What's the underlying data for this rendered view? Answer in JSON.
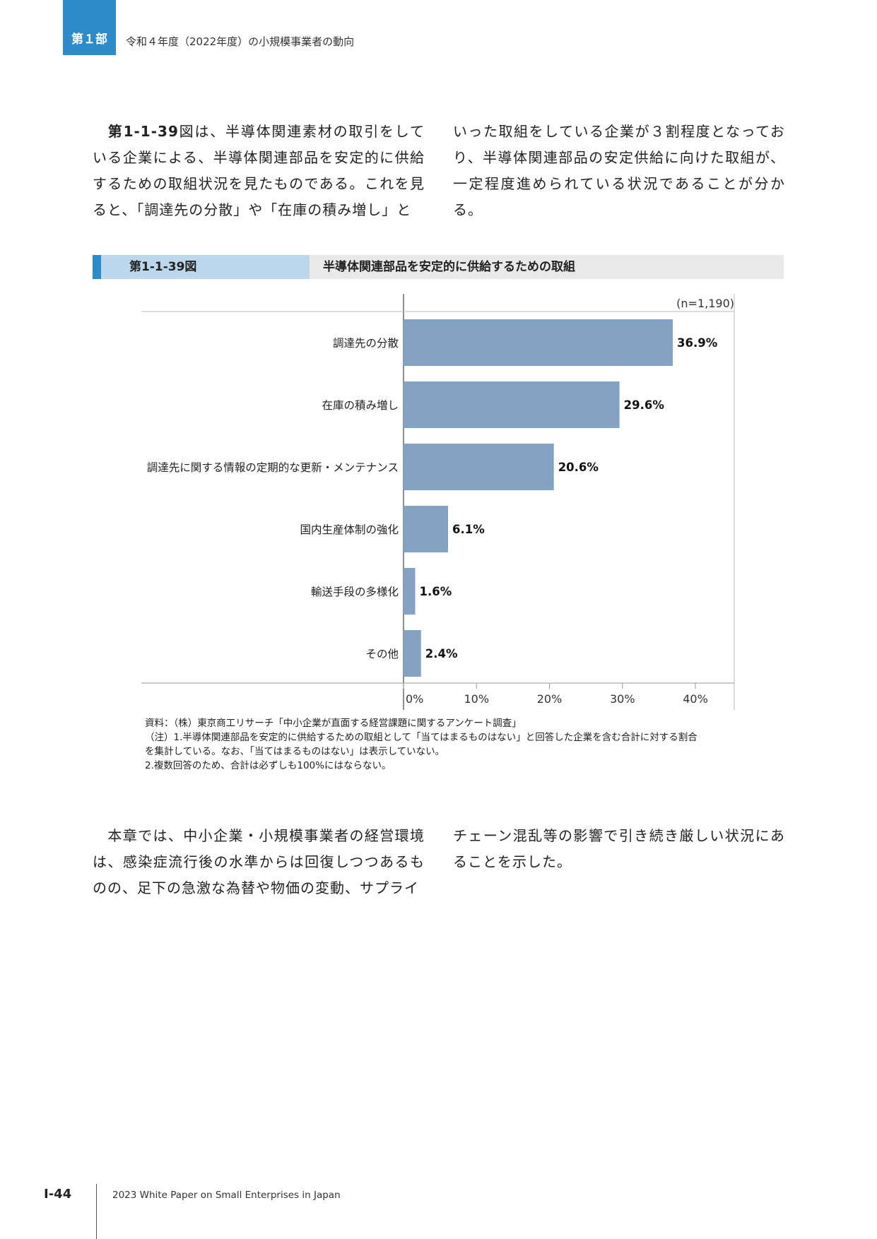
{
  "header": {
    "part": "第１部",
    "title": "令和４年度（2022年度）の小規模事業者の動向"
  },
  "intro": {
    "ref": "第1-1-39",
    "left": "図は、半導体関連素材の取引をしている企業による、半導体関連部品を安定的に供給するための取組状況を見たものである。これを見ると、「調達先の分散」や「在庫の積み増し」と",
    "right": "いった取組をしている企業が３割程度となっており、半導体関連部品の安定供給に向けた取組が、一定程度進められている状況であることが分かる。"
  },
  "figure": {
    "number": "第1-1-39図",
    "title": "半導体関連部品を安定的に供給するための取組"
  },
  "chart_data": {
    "type": "bar",
    "orientation": "horizontal",
    "categories": [
      "調達先の分散",
      "在庫の積み増し",
      "調達先に関する情報の定期的な更新・メンテナンス",
      "国内生産体制の強化",
      "輸送手段の多様化",
      "その他"
    ],
    "values": [
      36.9,
      29.6,
      20.6,
      6.1,
      1.6,
      2.4
    ],
    "value_labels": [
      "36.9%",
      "29.6%",
      "20.6%",
      "6.1%",
      "1.6%",
      "2.4%"
    ],
    "xlim": [
      0,
      45
    ],
    "x_ticks": [
      0,
      10,
      20,
      30,
      40
    ],
    "x_tick_labels": [
      "0%",
      "10%",
      "20%",
      "30%",
      "40%"
    ],
    "annotation": "(n=1,190)",
    "bar_color": "#84a2c2",
    "grid": false
  },
  "notes": [
    "資料：（株）東京商工リサーチ「中小企業が直面する経営課題に関するアンケート調査」",
    "（注）1.半導体関連部品を安定的に供給するための取組として「当てはまるものはない」と回答した企業を含む合計に対する割合",
    "を集計している。なお、「当てはまるものはない」は表示していない。",
    "2.複数回答のため、合計は必ずしも100%にはならない。"
  ],
  "closing": {
    "left": "本章では、中小企業・小規模事業者の経営環境は、感染症流行後の水準からは回復しつつあるものの、足下の急激な為替や物価の変動、サプライ",
    "right": "チェーン混乱等の影響で引き続き厳しい状況にあることを示した。"
  },
  "footer": {
    "page": "Ⅰ-44",
    "text": "2023 White Paper on Small Enterprises in Japan"
  }
}
